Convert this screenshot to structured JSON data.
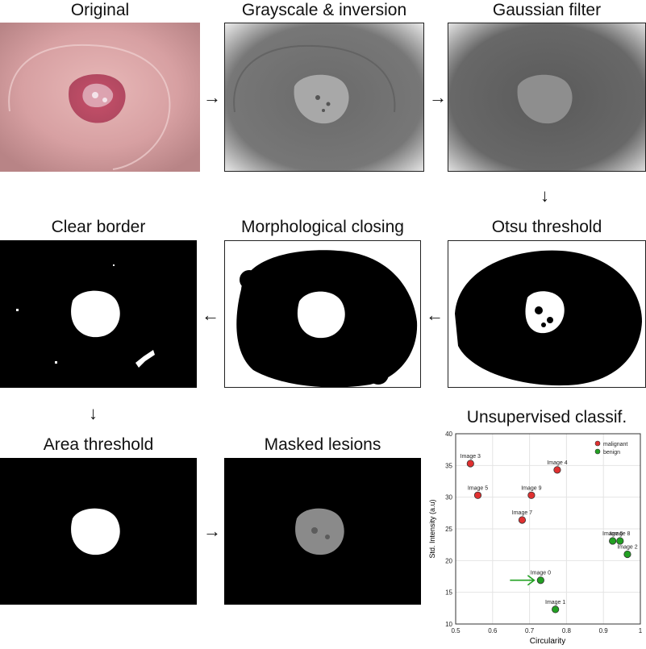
{
  "steps": {
    "original": "Original",
    "grayscale": "Grayscale & inversion",
    "gaussian": "Gaussian filter",
    "otsu": "Otsu threshold",
    "closing": "Morphological closing",
    "clear_border": "Clear border",
    "area": "Area threshold",
    "masked": "Masked lesions",
    "classif": "Unsupervised classif."
  },
  "arrows": {
    "right": "→",
    "left": "←",
    "down": "↓"
  },
  "chart_data": {
    "type": "scatter",
    "xlabel": "Circularity",
    "ylabel": "Std. Intensity (a.u)",
    "xlim": [
      0.5,
      1.0
    ],
    "ylim": [
      10,
      40
    ],
    "xticks": [
      0.5,
      0.6,
      0.7,
      0.8,
      0.9,
      1
    ],
    "yticks": [
      10,
      15,
      20,
      25,
      30,
      35,
      40
    ],
    "grid": true,
    "legend": "top-right",
    "series": [
      {
        "name": "malignant",
        "color": "#e03030",
        "points": [
          {
            "label": "Image 3",
            "x": 0.54,
            "y": 35.3
          },
          {
            "label": "Image 4",
            "x": 0.775,
            "y": 34.3
          },
          {
            "label": "Image 5",
            "x": 0.56,
            "y": 30.3
          },
          {
            "label": "Image 9",
            "x": 0.705,
            "y": 30.3
          },
          {
            "label": "Image 7",
            "x": 0.68,
            "y": 26.4
          }
        ]
      },
      {
        "name": "benign",
        "color": "#22a022",
        "points": [
          {
            "label": "Image 6",
            "x": 0.925,
            "y": 23.1
          },
          {
            "label": "Image 8",
            "x": 0.945,
            "y": 23.1
          },
          {
            "label": "Image 2",
            "x": 0.965,
            "y": 21.0
          },
          {
            "label": "Image 0",
            "x": 0.73,
            "y": 16.9
          },
          {
            "label": "Image 1",
            "x": 0.77,
            "y": 12.3
          }
        ]
      }
    ],
    "annotation": "Image 0",
    "annotation_color": "#22a022"
  }
}
